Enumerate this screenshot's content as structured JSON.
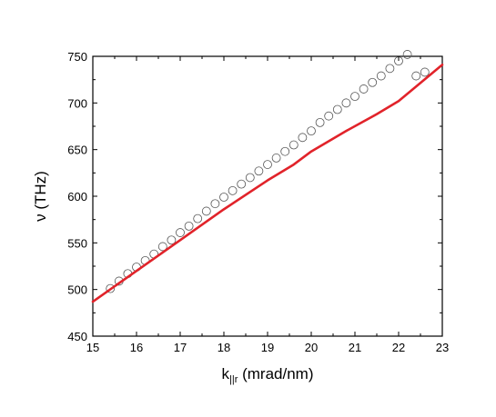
{
  "chart_data": {
    "type": "scatter",
    "title": "",
    "xlabel": "k",
    "xlabel_subscript": "||r",
    "xlabel_unit": " (mrad/nm)",
    "ylabel": "ν (THz)",
    "xlim": [
      15,
      23
    ],
    "ylim": [
      450,
      750
    ],
    "x_ticks": [
      "15",
      "16",
      "17",
      "18",
      "19",
      "20",
      "21",
      "22",
      "23"
    ],
    "y_ticks": [
      "450",
      "500",
      "550",
      "600",
      "650",
      "700",
      "750"
    ],
    "grid": false,
    "legend": "none",
    "series": [
      {
        "kind": "scatter",
        "marker": "open-circle",
        "color": "#555555",
        "x": [
          15.4,
          15.6,
          15.8,
          16.0,
          16.2,
          16.4,
          16.6,
          16.8,
          17.0,
          17.2,
          17.4,
          17.6,
          17.8,
          18.0,
          18.2,
          18.4,
          18.6,
          18.8,
          19.0,
          19.2,
          19.4,
          19.6,
          19.8,
          20.0,
          20.2,
          20.4,
          20.6,
          20.8,
          21.0,
          21.2,
          21.4,
          21.6,
          21.8,
          22.0,
          22.2,
          22.4,
          22.6
        ],
        "y": [
          501,
          509,
          517,
          524,
          531,
          538,
          546,
          553,
          561,
          568,
          576,
          584,
          592,
          599,
          606,
          613,
          620,
          627,
          634,
          641,
          648,
          655,
          663,
          670,
          679,
          686,
          693,
          700,
          707,
          715,
          722,
          729,
          737,
          745,
          752,
          729,
          733
        ]
      },
      {
        "kind": "line",
        "color": "#e1232a",
        "x": [
          15,
          16,
          17,
          18,
          19,
          19.6,
          20,
          20.8,
          21.5,
          22,
          23
        ],
        "y": [
          487,
          520,
          553,
          586,
          617,
          634,
          648,
          670,
          688,
          702,
          741
        ]
      }
    ]
  }
}
